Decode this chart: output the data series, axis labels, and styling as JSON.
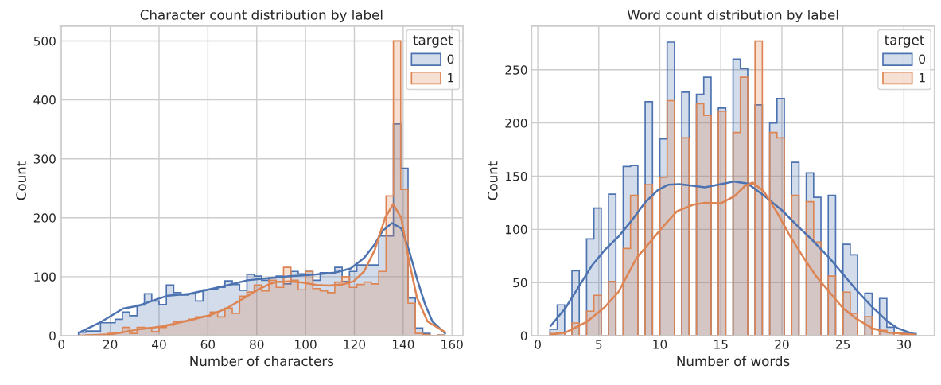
{
  "chart_data": [
    {
      "type": "histogram",
      "title": "Character count distribution by label",
      "xlabel": "Number of characters",
      "ylabel": "Count",
      "legend_title": "target",
      "legend": "top right",
      "grid": true,
      "xlim": [
        -0.5,
        164.5
      ],
      "ylim": [
        0,
        525
      ],
      "xticks": [
        0,
        20,
        40,
        60,
        80,
        100,
        120,
        140,
        160
      ],
      "yticks": [
        0,
        100,
        200,
        300,
        400,
        500
      ],
      "bins": [
        7,
        10,
        13,
        16,
        19,
        22,
        25,
        28,
        31,
        34,
        37,
        40,
        43,
        46,
        49,
        52,
        55,
        58,
        61,
        64,
        67,
        70,
        73,
        76,
        79,
        82,
        85,
        88,
        91,
        94,
        97,
        100,
        103,
        106,
        109,
        112,
        115,
        118,
        121,
        124,
        127,
        130,
        133,
        136,
        139,
        142,
        145,
        148,
        151,
        154,
        157
      ],
      "series": [
        {
          "name": "0",
          "color": "#4c72b0",
          "values": [
            6,
            8,
            8,
            22,
            22,
            28,
            40,
            34,
            52,
            71,
            59,
            53,
            86,
            73,
            69,
            71,
            59,
            78,
            79,
            82,
            93,
            87,
            77,
            104,
            101,
            94,
            98,
            101,
            88,
            109,
            105,
            109,
            94,
            107,
            106,
            116,
            92,
            109,
            120,
            120,
            120,
            169,
            169,
            359,
            284,
            64,
            13,
            4,
            0,
            1
          ]
        },
        {
          "name": "1",
          "color": "#dd8452",
          "values": [
            0,
            1,
            1,
            2,
            4,
            5,
            14,
            4,
            14,
            13,
            7,
            14,
            18,
            24,
            25,
            28,
            32,
            33,
            40,
            32,
            47,
            38,
            67,
            74,
            86,
            76,
            94,
            82,
            116,
            94,
            78,
            109,
            80,
            76,
            73,
            91,
            100,
            82,
            87,
            91,
            88,
            109,
            237,
            500,
            248,
            55,
            4,
            2,
            0,
            1
          ]
        },
        {
          "type": "line",
          "color": "#4c72b0",
          "x": [
            7.6,
            16.5,
            25.2,
            31.7,
            37.7,
            43.6,
            52.3,
            58.8,
            67.5,
            76.2,
            85.4,
            93.6,
            104.4,
            112,
            118.5,
            124,
            128.3,
            131.6,
            135.4,
            139.2,
            142.4,
            145.7,
            149,
            152,
            157.2
          ],
          "values": [
            6,
            24,
            46,
            51,
            60,
            68,
            71,
            77,
            85,
            94,
            98,
            101,
            104,
            107,
            114,
            132,
            155,
            178,
            191,
            182,
            145,
            96,
            53,
            24,
            4
          ]
        },
        {
          "type": "line",
          "color": "#dd8452",
          "x": [
            7.6,
            19.8,
            30.6,
            41.5,
            52.3,
            61,
            67.5,
            74,
            80.5,
            85.4,
            88.1,
            93.6,
            99,
            104.4,
            109.8,
            115.2,
            119.6,
            124,
            128.3,
            132.6,
            135.9,
            139.2,
            142.4,
            145.7,
            150,
            157.2
          ],
          "values": [
            0,
            2,
            10,
            16,
            26,
            35,
            46,
            62,
            78,
            88,
            91,
            92,
            90,
            86,
            85,
            87,
            92,
            109,
            145,
            200,
            223,
            200,
            127,
            64,
            24,
            6
          ]
        }
      ]
    },
    {
      "type": "histogram",
      "title": "Word count distribution by label",
      "xlabel": "Number of words",
      "ylabel": "Count",
      "legend_title": "target",
      "legend": "top right",
      "grid": true,
      "xlim": [
        -0.5,
        32.5
      ],
      "ylim": [
        0,
        291
      ],
      "xticks": [
        0,
        5,
        10,
        15,
        20,
        25,
        30
      ],
      "yticks": [
        0,
        50,
        100,
        150,
        200,
        250
      ],
      "bins": [
        1,
        1.6,
        2.2,
        2.8,
        3.4,
        4,
        4.6,
        5.2,
        5.8,
        6.4,
        7,
        7.6,
        8.2,
        8.8,
        9.4,
        10,
        10.6,
        11.2,
        11.8,
        12.4,
        13,
        13.6,
        14.2,
        14.8,
        15.4,
        16,
        16.6,
        17.2,
        17.8,
        18.4,
        19,
        19.6,
        20.2,
        20.8,
        21.4,
        22,
        22.6,
        23.2,
        23.8,
        24.4,
        25,
        25.6,
        26.2,
        26.8,
        27.4,
        28,
        28.6,
        29.2,
        29.8,
        30.4,
        31
      ],
      "series": [
        {
          "name": "0",
          "color": "#4c72b0",
          "values": [
            6,
            29,
            0,
            61,
            0,
            91,
            120,
            0,
            133,
            0,
            159,
            160,
            0,
            220,
            0,
            185,
            276,
            0,
            229,
            0,
            227,
            243,
            0,
            214,
            0,
            260,
            251,
            0,
            217,
            0,
            200,
            223,
            0,
            163,
            0,
            153,
            130,
            0,
            132,
            0,
            86,
            76,
            0,
            40,
            0,
            35,
            8,
            0,
            3,
            2
          ]
        },
        {
          "name": "1",
          "color": "#dd8452",
          "values": [
            2,
            3,
            0,
            12,
            0,
            23,
            38,
            0,
            51,
            0,
            82,
            132,
            0,
            142,
            0,
            149,
            221,
            0,
            186,
            0,
            218,
            207,
            0,
            211,
            0,
            191,
            243,
            0,
            277,
            0,
            191,
            186,
            0,
            132,
            0,
            126,
            88,
            0,
            56,
            0,
            41,
            21,
            0,
            18,
            0,
            5,
            3,
            0,
            1,
            0
          ]
        },
        {
          "type": "line",
          "color": "#4c72b0",
          "x": [
            1.04,
            2.27,
            3.35,
            4.44,
            5.52,
            6.6,
            7.68,
            8.77,
            9.85,
            10.7,
            11.6,
            12.7,
            13.7,
            15.0,
            16.1,
            17.2,
            18.5,
            20.0,
            21.3,
            22.4,
            23.9,
            25.0,
            26.1,
            27.4,
            28.7,
            29.5,
            30.9
          ],
          "values": [
            9,
            26,
            46,
            66,
            81,
            93,
            108,
            125,
            137,
            142,
            142.5,
            141,
            139.5,
            142.5,
            145,
            143,
            132,
            118,
            103,
            91,
            73,
            58,
            43,
            27,
            13,
            7,
            1
          ]
        },
        {
          "type": "line",
          "color": "#dd8452",
          "x": [
            1.04,
            2.27,
            4.0,
            5.5,
            6.6,
            8.1,
            9.2,
            10.3,
            11.4,
            12.7,
            13.7,
            15.0,
            16.1,
            17.0,
            17.6,
            18.5,
            19.6,
            20.7,
            21.8,
            22.8,
            23.9,
            25.0,
            26.1,
            27.4,
            28.7,
            30.9
          ],
          "values": [
            1,
            3,
            13,
            27,
            41,
            73,
            88,
            103,
            117,
            123,
            125,
            124.5,
            131,
            141,
            144,
            136,
            116,
            93,
            73,
            56,
            41,
            26,
            16,
            7,
            3,
            1
          ]
        }
      ]
    }
  ]
}
